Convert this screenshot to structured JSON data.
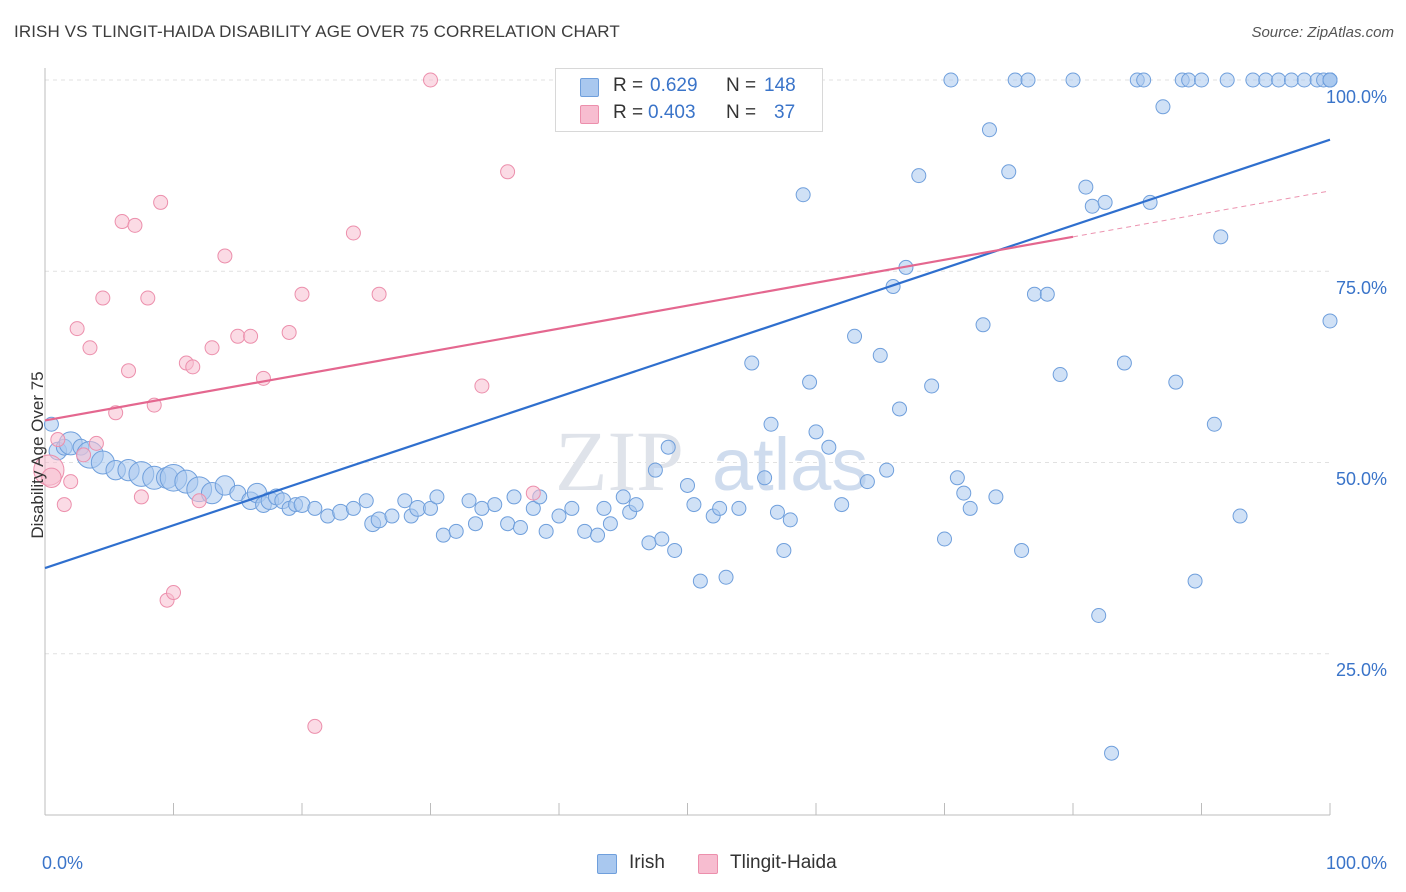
{
  "title": "IRISH VS TLINGIT-HAIDA DISABILITY AGE OVER 75 CORRELATION CHART",
  "source": "Source: ZipAtlas.com",
  "watermark": {
    "zip": "ZIP",
    "atlas": "atlas"
  },
  "legend": {
    "irish": {
      "r_label": "R =",
      "r_value": "0.629",
      "n_label": "N =",
      "n_value": "148"
    },
    "tlingit": {
      "r_label": "R =",
      "r_value": "0.403",
      "n_label": "N =",
      "n_value": "37"
    }
  },
  "bottom_legend": {
    "irish": "Irish",
    "tlingit": "Tlingit-Haida"
  },
  "colors": {
    "irish_fill": "#a9c8ef",
    "irish_stroke": "#6f9fdc",
    "irish_line": "#2f6fce",
    "tlingit_fill": "#f7bdd0",
    "tlingit_stroke": "#ec8fac",
    "tlingit_line": "#e4678f",
    "tick_text": "#3a74c9",
    "grid": "#e1e1e1"
  },
  "chart_data": {
    "type": "scatter",
    "title": "IRISH VS TLINGIT-HAIDA DISABILITY AGE OVER 75 CORRELATION CHART",
    "xlabel": "",
    "ylabel": "Disability Age Over 75",
    "xlim": [
      0,
      100
    ],
    "ylim": [
      5,
      105
    ],
    "x_tick_labels": [
      "0.0%",
      "100.0%"
    ],
    "y_tick_labels": [
      "25.0%",
      "50.0%",
      "75.0%",
      "100.0%"
    ],
    "y_ticks": [
      25,
      50,
      75,
      100
    ],
    "grid": true,
    "legend_position": "top-center",
    "series": [
      {
        "name": "Irish",
        "R": 0.629,
        "N": 148,
        "trend": {
          "x": [
            0,
            100
          ],
          "y": [
            36.2,
            92.2
          ]
        },
        "points": [
          [
            0.5,
            55,
            5
          ],
          [
            1,
            51.5,
            7
          ],
          [
            1.5,
            52,
            6
          ],
          [
            2,
            52.5,
            10
          ],
          [
            2.8,
            52,
            6
          ],
          [
            3.5,
            51,
            12
          ],
          [
            4.5,
            50,
            10
          ],
          [
            5.5,
            49,
            8
          ],
          [
            6.5,
            49,
            9
          ],
          [
            7.5,
            48.5,
            11
          ],
          [
            8.5,
            48,
            10
          ],
          [
            9.5,
            48,
            9
          ],
          [
            10,
            48,
            12
          ],
          [
            11,
            47.5,
            10
          ],
          [
            12,
            46.5,
            11
          ],
          [
            13,
            46,
            9
          ],
          [
            14,
            47,
            8
          ],
          [
            15,
            46,
            6
          ],
          [
            16,
            45,
            7
          ],
          [
            16.5,
            46,
            8
          ],
          [
            17,
            44.5,
            6
          ],
          [
            17.5,
            45,
            7
          ],
          [
            18,
            45.5,
            6
          ],
          [
            18.5,
            45,
            6
          ],
          [
            19,
            44,
            5
          ],
          [
            19.5,
            44.5,
            5
          ],
          [
            20,
            44.5,
            6
          ],
          [
            21,
            44,
            5
          ],
          [
            22,
            43,
            5
          ],
          [
            23,
            43.5,
            6
          ],
          [
            24,
            44,
            5
          ],
          [
            25,
            45,
            5
          ],
          [
            25.5,
            42,
            6
          ],
          [
            26,
            42.5,
            6
          ],
          [
            27,
            43,
            5
          ],
          [
            28,
            45,
            5
          ],
          [
            28.5,
            43,
            5
          ],
          [
            29,
            44,
            6
          ],
          [
            30,
            44,
            5
          ],
          [
            30.5,
            45.5,
            5
          ],
          [
            31,
            40.5,
            5
          ],
          [
            32,
            41,
            5
          ],
          [
            33,
            45,
            5
          ],
          [
            33.5,
            42,
            5
          ],
          [
            34,
            44,
            5
          ],
          [
            35,
            44.5,
            5
          ],
          [
            36,
            42,
            5
          ],
          [
            36.5,
            45.5,
            5
          ],
          [
            37,
            41.5,
            5
          ],
          [
            38,
            44,
            5
          ],
          [
            38.5,
            45.5,
            5
          ],
          [
            39,
            41,
            5
          ],
          [
            40,
            43,
            5
          ],
          [
            41,
            44,
            5
          ],
          [
            42,
            41,
            5
          ],
          [
            43,
            40.5,
            5
          ],
          [
            43.5,
            44,
            5
          ],
          [
            44,
            42,
            5
          ],
          [
            45,
            45.5,
            5
          ],
          [
            45.5,
            43.5,
            5
          ],
          [
            46,
            44.5,
            5
          ],
          [
            47,
            39.5,
            5
          ],
          [
            47.5,
            49,
            5
          ],
          [
            48,
            40,
            5
          ],
          [
            48.5,
            52,
            5
          ],
          [
            49,
            38.5,
            5
          ],
          [
            50,
            47,
            5
          ],
          [
            50.5,
            44.5,
            5
          ],
          [
            51,
            34.5,
            5
          ],
          [
            52,
            43,
            5
          ],
          [
            52.5,
            44,
            5
          ],
          [
            53,
            35,
            5
          ],
          [
            54,
            44,
            5
          ],
          [
            55,
            63,
            5
          ],
          [
            56,
            48,
            5
          ],
          [
            56.5,
            55,
            5
          ],
          [
            57,
            43.5,
            5
          ],
          [
            57.5,
            38.5,
            5
          ],
          [
            58,
            42.5,
            5
          ],
          [
            59,
            85,
            5
          ],
          [
            59.5,
            60.5,
            5
          ],
          [
            60,
            54,
            5
          ],
          [
            61,
            52,
            5
          ],
          [
            62,
            44.5,
            5
          ],
          [
            63,
            66.5,
            5
          ],
          [
            64,
            47.5,
            5
          ],
          [
            65,
            64,
            5
          ],
          [
            65.5,
            49,
            5
          ],
          [
            66,
            73,
            5
          ],
          [
            66.5,
            57,
            5
          ],
          [
            67,
            75.5,
            5
          ],
          [
            68,
            87.5,
            5
          ],
          [
            69,
            60,
            5
          ],
          [
            70,
            40,
            5
          ],
          [
            70.5,
            100,
            5
          ],
          [
            71,
            48,
            5
          ],
          [
            71.5,
            46,
            5
          ],
          [
            72,
            44,
            5
          ],
          [
            73,
            68,
            5
          ],
          [
            73.5,
            93.5,
            5
          ],
          [
            74,
            45.5,
            5
          ],
          [
            75,
            88,
            5
          ],
          [
            75.5,
            100,
            5
          ],
          [
            76,
            38.5,
            5
          ],
          [
            76.5,
            100,
            5
          ],
          [
            77,
            72,
            5
          ],
          [
            78,
            72,
            5
          ],
          [
            79,
            61.5,
            5
          ],
          [
            80,
            100,
            5
          ],
          [
            81,
            86,
            5
          ],
          [
            81.5,
            83.5,
            5
          ],
          [
            82,
            30,
            5
          ],
          [
            82.5,
            84,
            5
          ],
          [
            83,
            12,
            5
          ],
          [
            84,
            63,
            5
          ],
          [
            85,
            100,
            5
          ],
          [
            85.5,
            100,
            5
          ],
          [
            86,
            84,
            5
          ],
          [
            87,
            96.5,
            5
          ],
          [
            88,
            60.5,
            5
          ],
          [
            88.5,
            100,
            5
          ],
          [
            89,
            100,
            5
          ],
          [
            89.5,
            34.5,
            5
          ],
          [
            90,
            100,
            5
          ],
          [
            91,
            55,
            5
          ],
          [
            91.5,
            79.5,
            5
          ],
          [
            92,
            100,
            5
          ],
          [
            93,
            43,
            5
          ],
          [
            94,
            100,
            5
          ],
          [
            95,
            100,
            5
          ],
          [
            96,
            100,
            5
          ],
          [
            97,
            100,
            5
          ],
          [
            98,
            100,
            5
          ],
          [
            99,
            100,
            5
          ],
          [
            99.5,
            100,
            5
          ],
          [
            100,
            68.5,
            5
          ],
          [
            100,
            100,
            5
          ],
          [
            100,
            100,
            5
          ],
          [
            100,
            100,
            5
          ],
          [
            100,
            100,
            5
          ],
          [
            100,
            100,
            5
          ],
          [
            100,
            100,
            5
          ],
          [
            100,
            100,
            5
          ],
          [
            100,
            100,
            5
          ],
          [
            100,
            100,
            5
          ],
          [
            100,
            100,
            5
          ],
          [
            100,
            100,
            5
          ],
          [
            100,
            100,
            5
          ],
          [
            100,
            100,
            5
          ],
          [
            100,
            100,
            5
          ],
          [
            100,
            100,
            5
          ]
        ]
      },
      {
        "name": "Tlingit-Haida",
        "R": 0.403,
        "N": 37,
        "trend": {
          "x": [
            0,
            80
          ],
          "y": [
            55.5,
            79.5
          ],
          "dashed_to": [
            100,
            85.5
          ]
        },
        "points": [
          [
            0.3,
            49,
            14
          ],
          [
            0.5,
            48,
            8
          ],
          [
            1,
            53,
            5
          ],
          [
            1.5,
            44.5,
            5
          ],
          [
            2,
            47.5,
            5
          ],
          [
            2.5,
            67.5,
            5
          ],
          [
            3,
            51,
            5
          ],
          [
            3.5,
            65,
            5
          ],
          [
            4,
            52.5,
            5
          ],
          [
            4.5,
            71.5,
            5
          ],
          [
            5.5,
            56.5,
            5
          ],
          [
            6,
            81.5,
            5
          ],
          [
            6.5,
            62,
            5
          ],
          [
            7,
            81,
            5
          ],
          [
            7.5,
            45.5,
            5
          ],
          [
            8,
            71.5,
            5
          ],
          [
            8.5,
            57.5,
            5
          ],
          [
            9,
            84,
            5
          ],
          [
            9.5,
            32,
            5
          ],
          [
            10,
            33,
            5
          ],
          [
            11,
            63,
            5
          ],
          [
            11.5,
            62.5,
            5
          ],
          [
            12,
            45,
            5
          ],
          [
            13,
            65,
            5
          ],
          [
            14,
            77,
            5
          ],
          [
            15,
            66.5,
            5
          ],
          [
            16,
            66.5,
            5
          ],
          [
            17,
            61,
            5
          ],
          [
            19,
            67,
            5
          ],
          [
            20,
            72,
            5
          ],
          [
            21,
            15.5,
            5
          ],
          [
            24,
            80,
            5
          ],
          [
            26,
            72,
            5
          ],
          [
            30,
            100,
            5
          ],
          [
            34,
            60,
            5
          ],
          [
            36,
            88,
            5
          ],
          [
            38,
            46,
            5
          ]
        ]
      }
    ]
  }
}
